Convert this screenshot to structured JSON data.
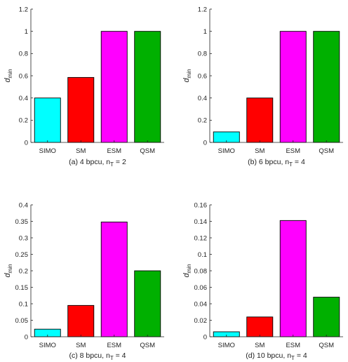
{
  "colors": {
    "SIMO": "#00ffff",
    "SM": "#ff0000",
    "ESM": "#ff00ff",
    "QSM": "#00b000",
    "axis": "#222222",
    "bar_edge": "#000000"
  },
  "chart_data": [
    {
      "type": "bar",
      "caption": "(a) 4 bpcu, n",
      "caption_sub": "T",
      "caption_tail": " = 2",
      "ylabel": "d",
      "ylabel_sub": "min",
      "categories": [
        "SIMO",
        "SM",
        "ESM",
        "QSM"
      ],
      "values": [
        0.4,
        0.585,
        1.0,
        1.0
      ],
      "ylim": [
        0,
        1.2
      ],
      "yticks": [
        0,
        0.2,
        0.4,
        0.6,
        0.8,
        1,
        1.2
      ],
      "ytick_labels": [
        "0",
        "0.2",
        "0.4",
        "0.6",
        "0.8",
        "1",
        "1.2"
      ],
      "grid": false
    },
    {
      "type": "bar",
      "caption": "(b) 6 bpcu, n",
      "caption_sub": "T",
      "caption_tail": " = 4",
      "ylabel": "d",
      "ylabel_sub": "min",
      "categories": [
        "SIMO",
        "SM",
        "ESM",
        "QSM"
      ],
      "values": [
        0.095,
        0.4,
        1.0,
        1.0
      ],
      "ylim": [
        0,
        1.2
      ],
      "yticks": [
        0,
        0.2,
        0.4,
        0.6,
        0.8,
        1,
        1.2
      ],
      "ytick_labels": [
        "0",
        "0.2",
        "0.4",
        "0.6",
        "0.8",
        "1",
        "1.2"
      ],
      "grid": false
    },
    {
      "type": "bar",
      "caption": "(c) 8 bpcu, n",
      "caption_sub": "T",
      "caption_tail": " = 4",
      "ylabel": "d",
      "ylabel_sub": "min",
      "categories": [
        "SIMO",
        "SM",
        "ESM",
        "QSM"
      ],
      "values": [
        0.023,
        0.095,
        0.348,
        0.2
      ],
      "ylim": [
        0,
        0.4
      ],
      "yticks": [
        0,
        0.05,
        0.1,
        0.15,
        0.2,
        0.25,
        0.3,
        0.35,
        0.4
      ],
      "ytick_labels": [
        "0",
        "0.05",
        "0.1",
        "0.15",
        "0.2",
        "0.25",
        "0.3",
        "0.35",
        "0.4"
      ],
      "grid": false
    },
    {
      "type": "bar",
      "caption": "(d) 10 bpcu, n",
      "caption_sub": "T",
      "caption_tail": " = 4",
      "ylabel": "d",
      "ylabel_sub": "min",
      "categories": [
        "SIMO",
        "SM",
        "ESM",
        "QSM"
      ],
      "values": [
        0.006,
        0.024,
        0.141,
        0.048
      ],
      "ylim": [
        0,
        0.16
      ],
      "yticks": [
        0,
        0.02,
        0.04,
        0.06,
        0.08,
        0.1,
        0.12,
        0.14,
        0.16
      ],
      "ytick_labels": [
        "0",
        "0.02",
        "0.04",
        "0.06",
        "0.08",
        "0.1",
        "0.12",
        "0.14",
        "0.16"
      ],
      "grid": false
    }
  ]
}
